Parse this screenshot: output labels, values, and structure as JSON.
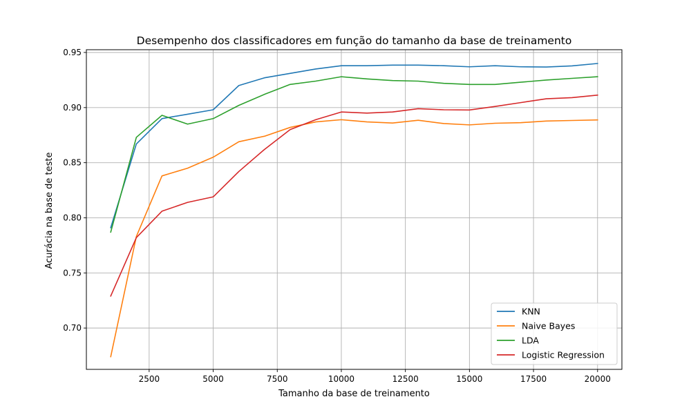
{
  "chart_data": {
    "type": "line",
    "title": "Desempenho dos classificadores em função do tamanho da base de treinamento",
    "xlabel": "Tamanho da base de treinamento",
    "ylabel": "Acurácia na base de teste",
    "xlim": [
      50,
      20950
    ],
    "ylim": [
      0.6625,
      0.9525
    ],
    "xticks": [
      2500,
      5000,
      7500,
      10000,
      12500,
      15000,
      17500,
      20000
    ],
    "yticks": [
      0.7,
      0.75,
      0.8,
      0.85,
      0.9,
      0.95
    ],
    "grid": true,
    "legend_position": "bottom-right",
    "x": [
      1000,
      2000,
      3000,
      4000,
      5000,
      6000,
      7000,
      8000,
      9000,
      10000,
      11000,
      12000,
      13000,
      14000,
      15000,
      16000,
      17000,
      18000,
      19000,
      20000
    ],
    "series": [
      {
        "name": "KNN",
        "color": "#1f77b4",
        "values": [
          0.791,
          0.867,
          0.89,
          0.894,
          0.898,
          0.92,
          0.927,
          0.931,
          0.935,
          0.938,
          0.938,
          0.9385,
          0.9385,
          0.938,
          0.937,
          0.938,
          0.937,
          0.9368,
          0.9378,
          0.94
        ]
      },
      {
        "name": "Naive Bayes",
        "color": "#ff7f0e",
        "values": [
          0.674,
          0.783,
          0.838,
          0.845,
          0.855,
          0.869,
          0.874,
          0.882,
          0.887,
          0.889,
          0.887,
          0.886,
          0.8885,
          0.8855,
          0.8843,
          0.8858,
          0.8863,
          0.8878,
          0.8883,
          0.8888
        ]
      },
      {
        "name": "LDA",
        "color": "#2ca02c",
        "values": [
          0.787,
          0.873,
          0.893,
          0.885,
          0.89,
          0.902,
          0.912,
          0.921,
          0.924,
          0.928,
          0.926,
          0.9245,
          0.924,
          0.922,
          0.921,
          0.921,
          0.923,
          0.925,
          0.9265,
          0.928
        ]
      },
      {
        "name": "Logistic Regression",
        "color": "#d62728",
        "values": [
          0.729,
          0.782,
          0.806,
          0.814,
          0.819,
          0.842,
          0.862,
          0.88,
          0.889,
          0.896,
          0.895,
          0.896,
          0.899,
          0.898,
          0.8978,
          0.901,
          0.9045,
          0.908,
          0.909,
          0.9113
        ]
      }
    ]
  }
}
